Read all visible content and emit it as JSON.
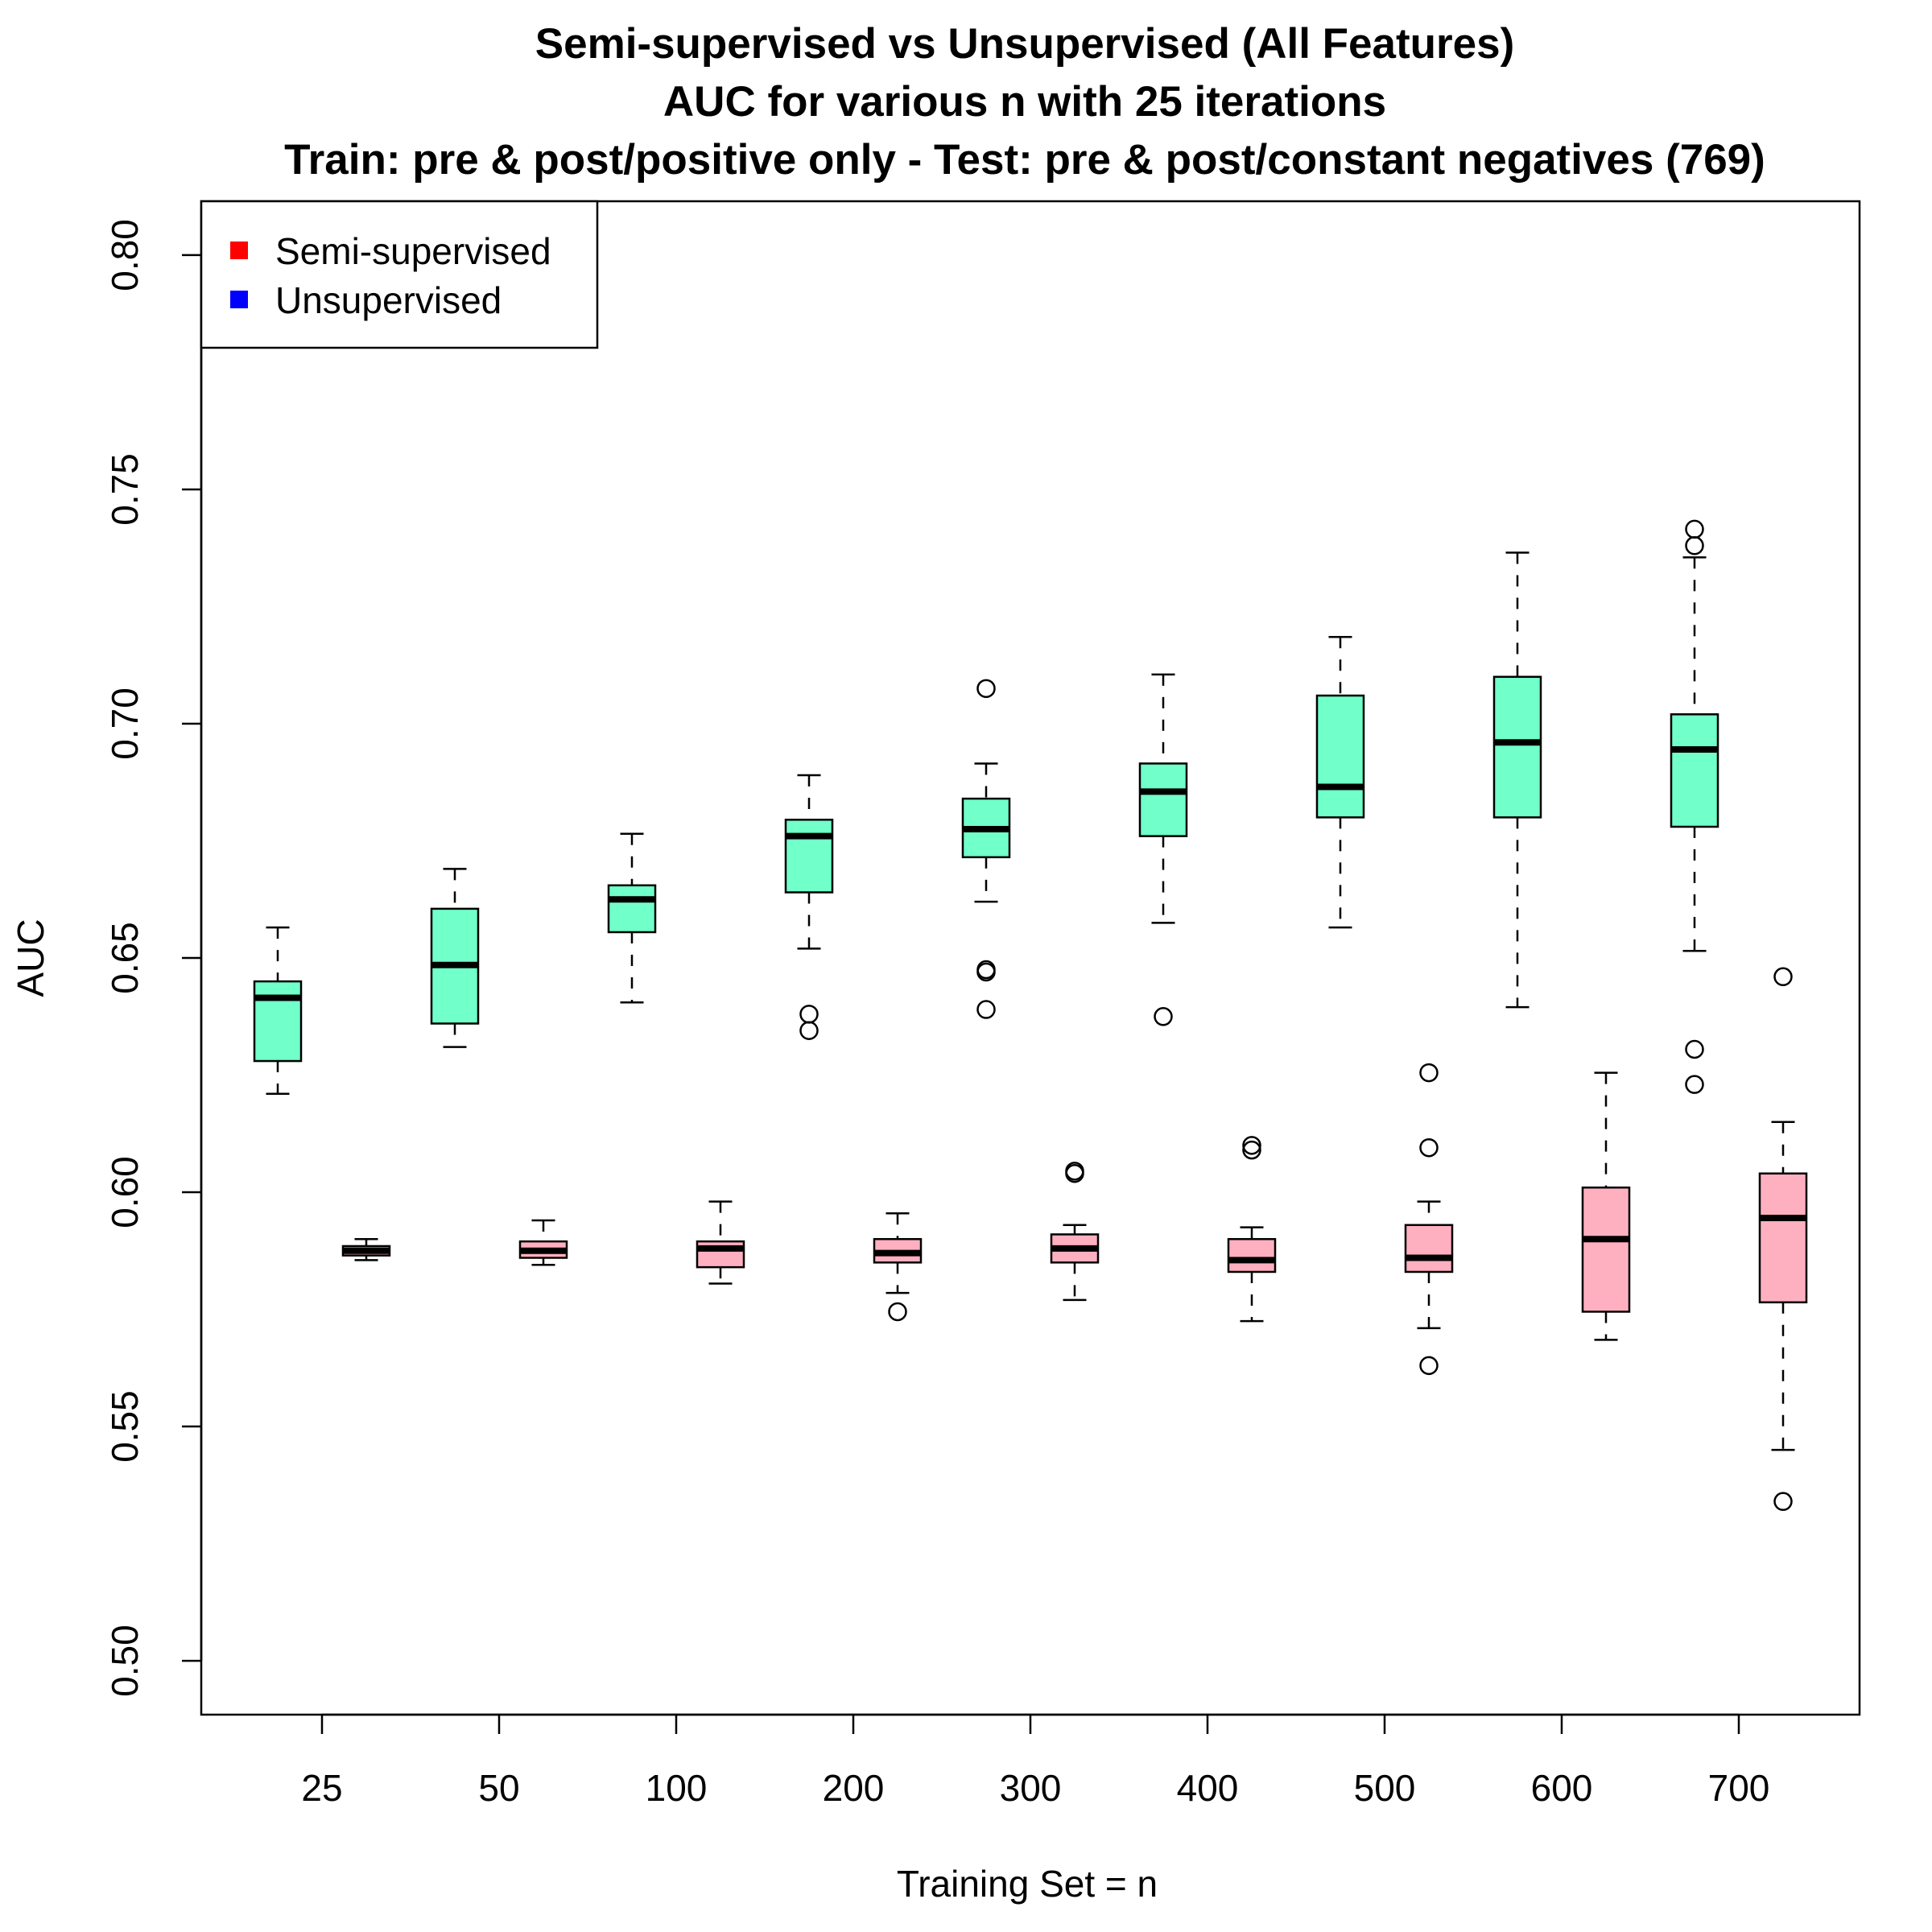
{
  "chart_data": {
    "type": "boxplot",
    "title_lines": [
      "Semi-supervised vs Unsupervised (All Features)",
      "AUC for various n with 25 iterations",
      "Train: pre & post/positive only - Test: pre & post/constant negatives (769)"
    ],
    "xlabel": "Training Set = n",
    "ylabel": "AUC",
    "ylim": [
      0.4885,
      0.8115
    ],
    "yticks": [
      "0.50",
      "0.55",
      "0.60",
      "0.65",
      "0.70",
      "0.75",
      "0.80"
    ],
    "categories": [
      "25",
      "50",
      "100",
      "200",
      "300",
      "400",
      "500",
      "600",
      "700"
    ],
    "legend": {
      "position": "top-left",
      "entries": [
        {
          "label": "Semi-supervised",
          "color": "#ff0000"
        },
        {
          "label": "Unsupervised",
          "color": "#0000ff"
        }
      ]
    },
    "series": [
      {
        "color": "#71ffca",
        "offset": -0.25,
        "boxes": [
          {
            "whisker_low": 0.621,
            "q1": 0.628,
            "median": 0.6415,
            "q3": 0.645,
            "whisker_high": 0.6565,
            "outliers": []
          },
          {
            "whisker_low": 0.631,
            "q1": 0.636,
            "median": 0.6485,
            "q3": 0.6605,
            "whisker_high": 0.669,
            "outliers": []
          },
          {
            "whisker_low": 0.6405,
            "q1": 0.6555,
            "median": 0.6625,
            "q3": 0.6655,
            "whisker_high": 0.6765,
            "outliers": []
          },
          {
            "whisker_low": 0.652,
            "q1": 0.664,
            "median": 0.676,
            "q3": 0.6795,
            "whisker_high": 0.689,
            "outliers": [
              0.638,
              0.6345
            ]
          },
          {
            "whisker_low": 0.662,
            "q1": 0.6715,
            "median": 0.6775,
            "q3": 0.684,
            "whisker_high": 0.6915,
            "outliers": [
              0.7075,
              0.6475,
              0.647,
              0.639
            ]
          },
          {
            "whisker_low": 0.6575,
            "q1": 0.676,
            "median": 0.6855,
            "q3": 0.6915,
            "whisker_high": 0.7105,
            "outliers": [
              0.6375
            ]
          },
          {
            "whisker_low": 0.6565,
            "q1": 0.68,
            "median": 0.6865,
            "q3": 0.706,
            "whisker_high": 0.7185,
            "outliers": []
          },
          {
            "whisker_low": 0.6395,
            "q1": 0.68,
            "median": 0.696,
            "q3": 0.71,
            "whisker_high": 0.7365,
            "outliers": []
          },
          {
            "whisker_low": 0.6515,
            "q1": 0.678,
            "median": 0.6945,
            "q3": 0.702,
            "whisker_high": 0.7355,
            "outliers": [
              0.7415,
              0.738,
              0.6305,
              0.623
            ]
          }
        ]
      },
      {
        "color": "#ffb0c0",
        "offset": 0.25,
        "boxes": [
          {
            "whisker_low": 0.5855,
            "q1": 0.5865,
            "median": 0.5875,
            "q3": 0.5885,
            "whisker_high": 0.59,
            "outliers": []
          },
          {
            "whisker_low": 0.5845,
            "q1": 0.586,
            "median": 0.5875,
            "q3": 0.5895,
            "whisker_high": 0.594,
            "outliers": []
          },
          {
            "whisker_low": 0.5805,
            "q1": 0.584,
            "median": 0.588,
            "q3": 0.5895,
            "whisker_high": 0.598,
            "outliers": []
          },
          {
            "whisker_low": 0.5785,
            "q1": 0.585,
            "median": 0.587,
            "q3": 0.59,
            "whisker_high": 0.5955,
            "outliers": [
              0.5745
            ]
          },
          {
            "whisker_low": 0.577,
            "q1": 0.585,
            "median": 0.588,
            "q3": 0.591,
            "whisker_high": 0.593,
            "outliers": [
              0.6045,
              0.604
            ]
          },
          {
            "whisker_low": 0.5725,
            "q1": 0.583,
            "median": 0.5855,
            "q3": 0.59,
            "whisker_high": 0.5925,
            "outliers": [
              0.61,
              0.609
            ]
          },
          {
            "whisker_low": 0.571,
            "q1": 0.583,
            "median": 0.586,
            "q3": 0.593,
            "whisker_high": 0.598,
            "outliers": [
              0.6255,
              0.6095,
              0.563
            ]
          },
          {
            "whisker_low": 0.5685,
            "q1": 0.5745,
            "median": 0.59,
            "q3": 0.601,
            "whisker_high": 0.6255,
            "outliers": []
          },
          {
            "whisker_low": 0.545,
            "q1": 0.5765,
            "median": 0.5945,
            "q3": 0.604,
            "whisker_high": 0.615,
            "outliers": [
              0.646,
              0.534
            ]
          }
        ]
      }
    ]
  }
}
